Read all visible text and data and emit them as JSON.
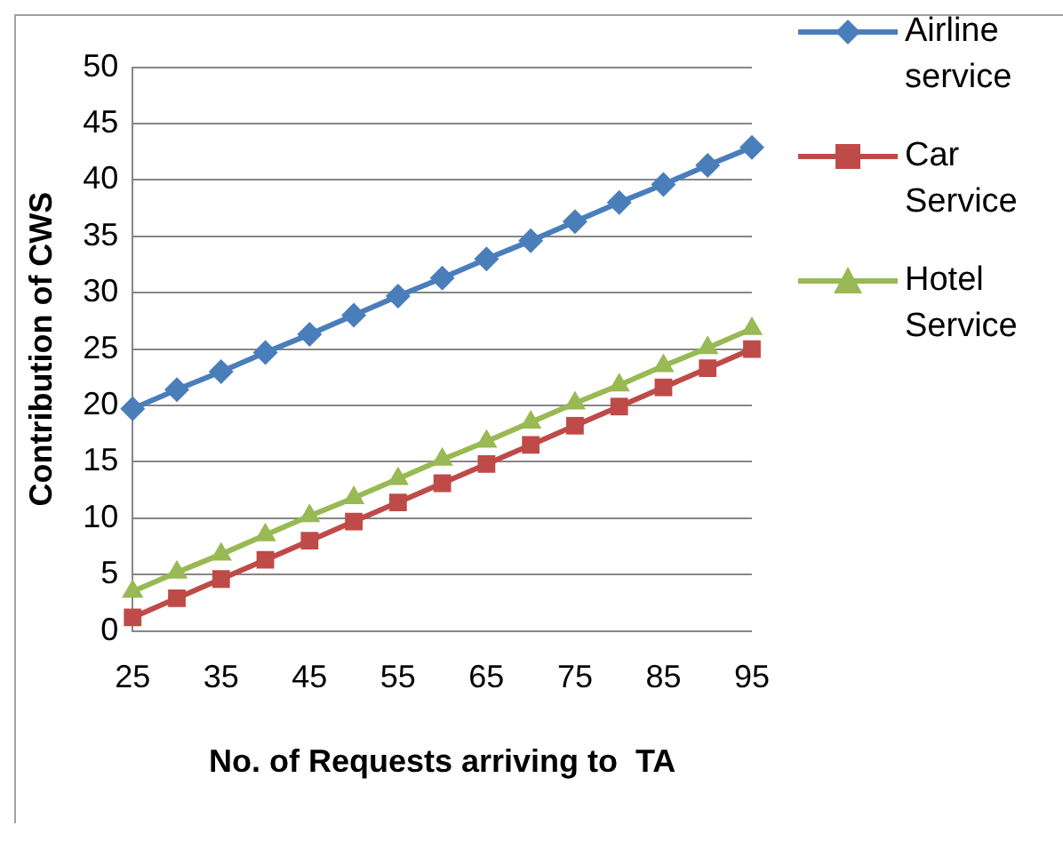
{
  "chart_data": {
    "type": "line",
    "xlabel": "No. of Requests arriving to  TA",
    "ylabel": "Contribution of CWS",
    "categories": [
      "25",
      null,
      "35",
      null,
      "45",
      null,
      "55",
      null,
      "65",
      null,
      "75",
      null,
      "85",
      null,
      "95"
    ],
    "series": [
      {
        "name": "Airline service",
        "color": "#4a7ebb",
        "marker": "diamond",
        "values": [
          19.7,
          21.4,
          23.0,
          24.7,
          26.3,
          28.0,
          29.7,
          31.3,
          33.0,
          34.6,
          36.3,
          38.0,
          39.6,
          41.3,
          42.9
        ]
      },
      {
        "name": "Car Service",
        "color": "#be4b48",
        "marker": "square",
        "values": [
          1.2,
          2.9,
          4.6,
          6.3,
          8.0,
          9.7,
          11.4,
          13.1,
          14.8,
          16.5,
          18.2,
          19.9,
          21.6,
          23.3,
          25.0
        ]
      },
      {
        "name": "Hotel Service",
        "color": "#98b954",
        "marker": "triangle",
        "values": [
          3.5,
          5.2,
          6.8,
          8.5,
          10.2,
          11.8,
          13.5,
          15.2,
          16.8,
          18.5,
          20.2,
          21.8,
          23.5,
          25.1,
          26.8
        ]
      }
    ],
    "ylim": [
      0,
      50
    ],
    "yticks": [
      0,
      5,
      10,
      15,
      20,
      25,
      30,
      35,
      40,
      45,
      50
    ],
    "grid": "y",
    "legend": "right",
    "line_style": "solid"
  }
}
